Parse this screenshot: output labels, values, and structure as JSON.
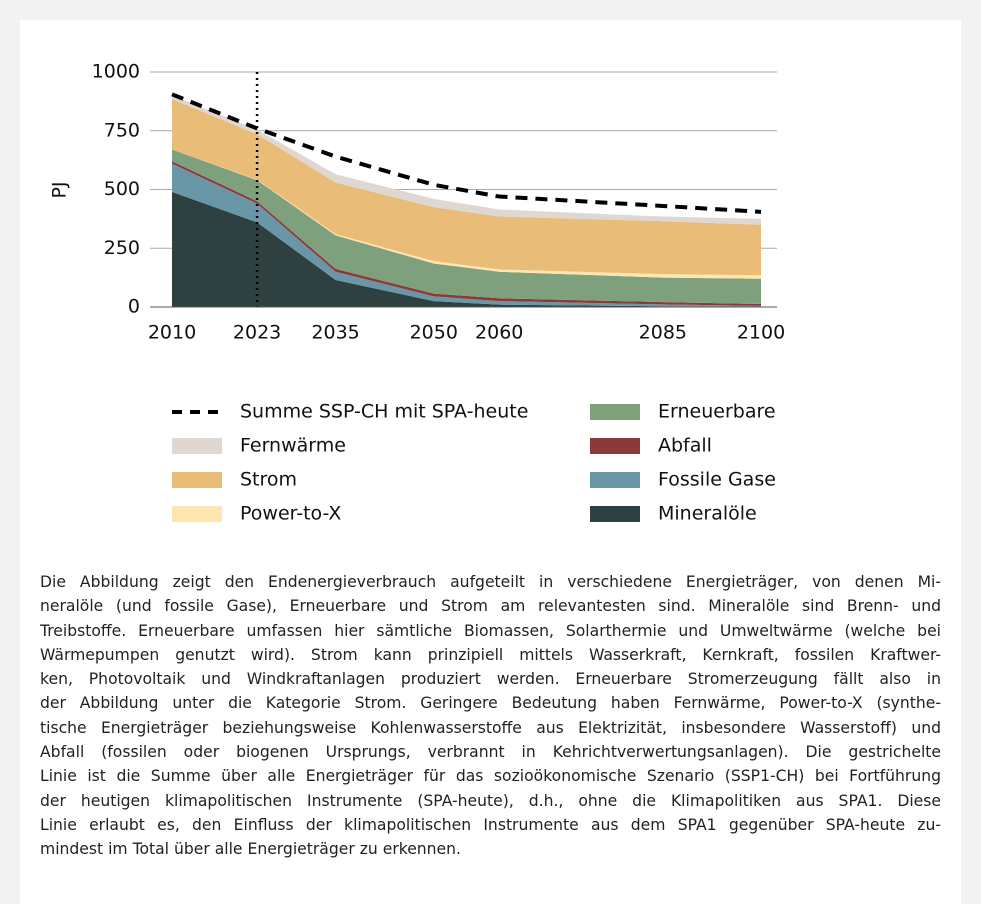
{
  "chart_data": {
    "type": "stacked_area",
    "ylabel": "PJ",
    "x": [
      2010,
      2023,
      2035,
      2050,
      2060,
      2085,
      2100
    ],
    "xlim": [
      2010,
      2100
    ],
    "xticks": [
      2010,
      2023,
      2035,
      2050,
      2060,
      2085,
      2100
    ],
    "ylim": [
      0,
      1000
    ],
    "yticks": [
      0,
      250,
      500,
      750,
      1000
    ],
    "grid": true,
    "reference_line_x": 2023,
    "series": [
      {
        "name": "Mineralöle",
        "color": "#2f4040",
        "values": [
          490,
          360,
          115,
          25,
          10,
          3,
          2
        ]
      },
      {
        "name": "Fossile Gase",
        "color": "#6a97a8",
        "values": [
          120,
          80,
          35,
          20,
          15,
          8,
          3
        ]
      },
      {
        "name": "Abfall",
        "color": "#8b3a3a",
        "values": [
          10,
          10,
          12,
          12,
          12,
          10,
          8
        ]
      },
      {
        "name": "Erneuerbare",
        "color": "#7fa07c",
        "values": [
          50,
          90,
          143,
          128,
          113,
          104,
          107
        ]
      },
      {
        "name": "Power-to-X",
        "color": "#fde6b0",
        "values": [
          0,
          2,
          5,
          10,
          10,
          15,
          15
        ]
      },
      {
        "name": "Strom",
        "color": "#e9bd78",
        "values": [
          215,
          193,
          220,
          230,
          225,
          225,
          215
        ]
      },
      {
        "name": "Fernwärme",
        "color": "#e0d7d0",
        "values": [
          15,
          20,
          35,
          35,
          30,
          20,
          25
        ]
      }
    ],
    "line": {
      "name": "Summe SSP-CH mit SPA-heute",
      "color": "#000000",
      "values": [
        905,
        760,
        640,
        520,
        470,
        430,
        405
      ]
    }
  },
  "caption_lines": [
    "Die Abbildung zeigt den Endenergieverbrauch aufgeteilt in verschiedene Energieträger, von denen Mi-",
    "neralöle (und fossile Gase), Erneuerbare und Strom am relevantesten sind. Mineralöle sind Brenn- und",
    "Treibstoffe. Erneuerbare umfassen hier sämtliche Biomassen, Solarthermie und Umweltwärme (welche bei",
    "Wärmepumpen genutzt wird). Strom kann prinzipiell mittels Wasserkraft, Kernkraft, fossilen Kraftwer-",
    "ken, Photovoltaik und Windkraftanlagen produziert werden. Erneuerbare Stromerzeugung fällt also in",
    "der Abbildung unter die Kategorie Strom. Geringere Bedeutung haben Fernwärme, Power-to-X (synthe-",
    "tische Energieträger beziehungsweise Kohlenwasserstoffe aus Elektrizität, insbesondere Wasserstoff) und",
    "Abfall (fossilen oder biogenen Ursprungs, verbrannt in Kehrichtverwertungsanlagen). Die gestrichelte",
    "Linie ist die Summe über alle Energieträger für das sozioökonomische Szenario (SSP1-CH) bei Fortführung",
    "der heutigen klimapolitischen Instrumente (SPA-heute), d.h., ohne die Klimapolitiken aus SPA1. Diese",
    "Linie erlaubt es, den Einfluss der klimapolitischen Instrumente aus dem SPA1 gegenüber SPA-heute zu-",
    "mindest im Total über alle Energieträger zu erkennen."
  ]
}
